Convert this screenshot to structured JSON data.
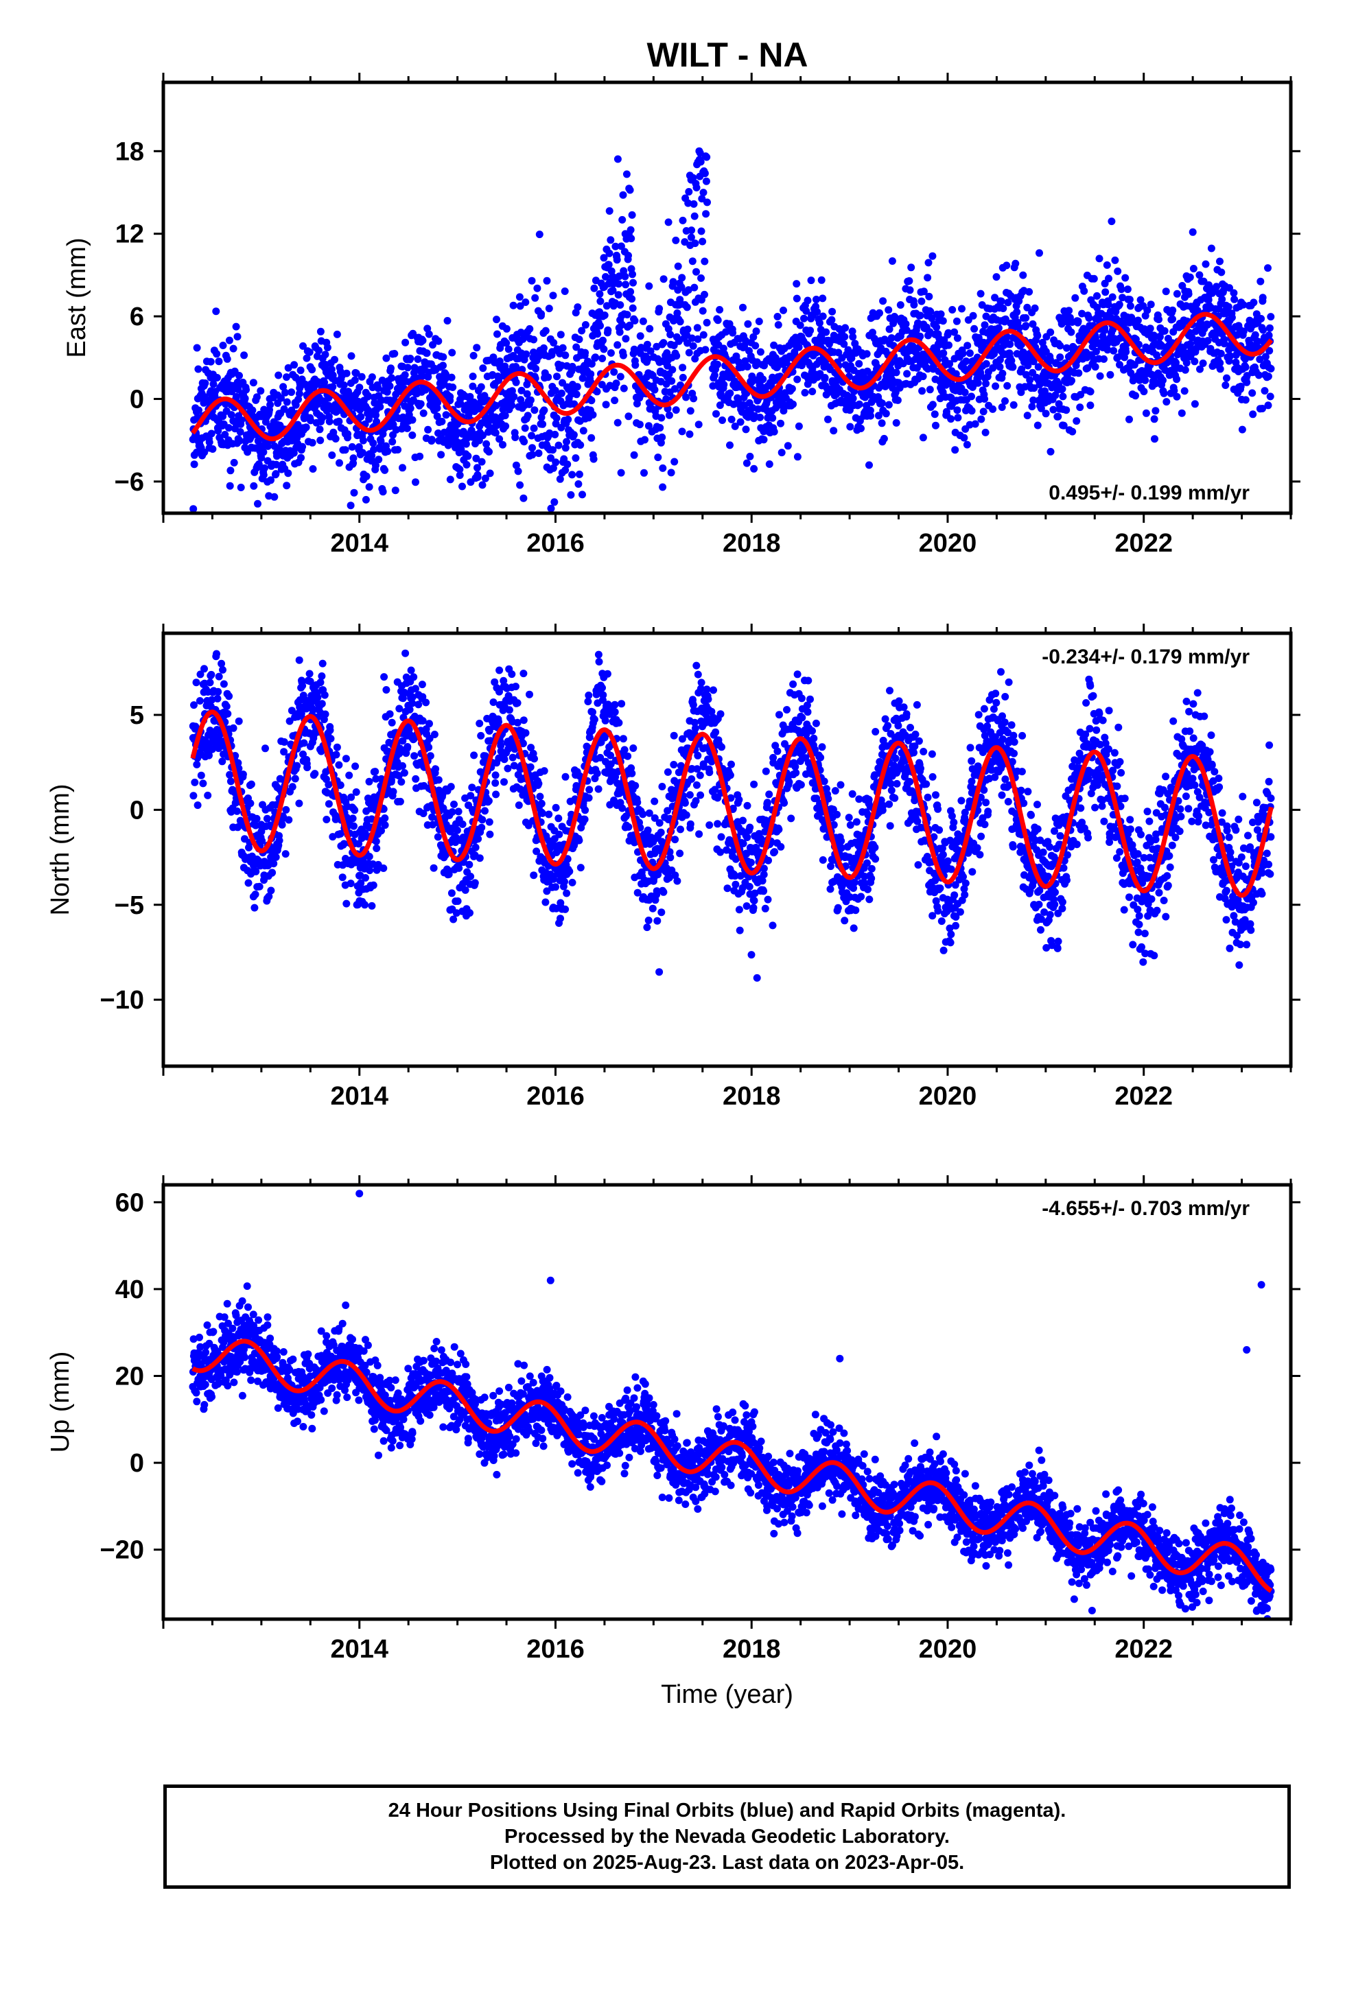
{
  "title": "WILT - NA",
  "colors": {
    "data": "#0000ff",
    "model": "#ff0000",
    "frame": "#000000"
  },
  "chart_data": [
    {
      "type": "scatter",
      "id": "east",
      "title": "WILT - NA",
      "ylabel": "East (mm)",
      "xlabel": "",
      "xlim": [
        2012.0,
        2023.5
      ],
      "ylim": [
        -8.3,
        23.0
      ],
      "xticks": [
        2014,
        2016,
        2018,
        2020,
        2022
      ],
      "yticks": [
        -6,
        0,
        6,
        12,
        18
      ],
      "ytick_labels": [
        "−6",
        "0",
        "6",
        "12",
        "18"
      ],
      "rate_label": "0.495+/- 0.199 mm/yr",
      "rate_pos": "bottom-right",
      "model_params": {
        "start": 2012.3,
        "end": 2023.3,
        "offset": -1.8,
        "trend": 0.495,
        "amp": 1.6,
        "phase": 2012.62,
        "drift": 0.12
      },
      "observations": {
        "start": 2012.3,
        "end": 2023.3,
        "scatter": 2.2,
        "gap": [
          2017.55,
          2017.6
        ]
      }
    },
    {
      "type": "scatter",
      "id": "north",
      "ylabel": "North (mm)",
      "xlabel": "",
      "xlim": [
        2012.0,
        2023.5
      ],
      "ylim": [
        -13.5,
        9.3
      ],
      "xticks": [
        2014,
        2016,
        2018,
        2020,
        2022
      ],
      "yticks": [
        -10,
        -5,
        0,
        5
      ],
      "ytick_labels": [
        "−10",
        "−5",
        "0",
        "5"
      ],
      "rate_label": "-0.234+/- 0.179 mm/yr",
      "rate_pos": "top-right",
      "model_params": {
        "start": 2012.3,
        "end": 2023.3,
        "offset": 1.6,
        "trend": -0.234,
        "amp": 3.6,
        "phase": 2012.5
      },
      "observations": {
        "start": 2012.3,
        "end": 2023.3,
        "scatter": 1.6
      }
    },
    {
      "type": "scatter",
      "id": "up",
      "ylabel": "Up (mm)",
      "xlabel": "Time (year)",
      "xlim": [
        2012.0,
        2023.5
      ],
      "ylim": [
        -36,
        64
      ],
      "xticks": [
        2014,
        2016,
        2018,
        2020,
        2022
      ],
      "yticks": [
        -20,
        0,
        20,
        40,
        60
      ],
      "ytick_labels": [
        "−20",
        "0",
        "20",
        "40",
        "60"
      ],
      "rate_label": "-4.655+/- 0.703 mm/yr",
      "rate_pos": "top-right",
      "model_params": {
        "start": 2012.3,
        "end": 2023.3,
        "offset": 26.0,
        "trend": -4.655,
        "amp": 4.5,
        "phase": 2012.85
      },
      "observations": {
        "start": 2012.3,
        "end": 2023.3,
        "scatter": 4.0,
        "outliers": [
          [
            2014.0,
            62
          ],
          [
            2015.95,
            42
          ],
          [
            2018.9,
            24
          ],
          [
            2023.2,
            41
          ],
          [
            2023.05,
            26
          ]
        ]
      }
    }
  ],
  "footer": {
    "line1": "24 Hour Positions Using Final Orbits (blue) and Rapid Orbits (magenta).",
    "line2": "Processed by the Nevada Geodetic Laboratory.",
    "line3": "Plotted on 2025-Aug-23. Last data on 2023-Apr-05."
  }
}
